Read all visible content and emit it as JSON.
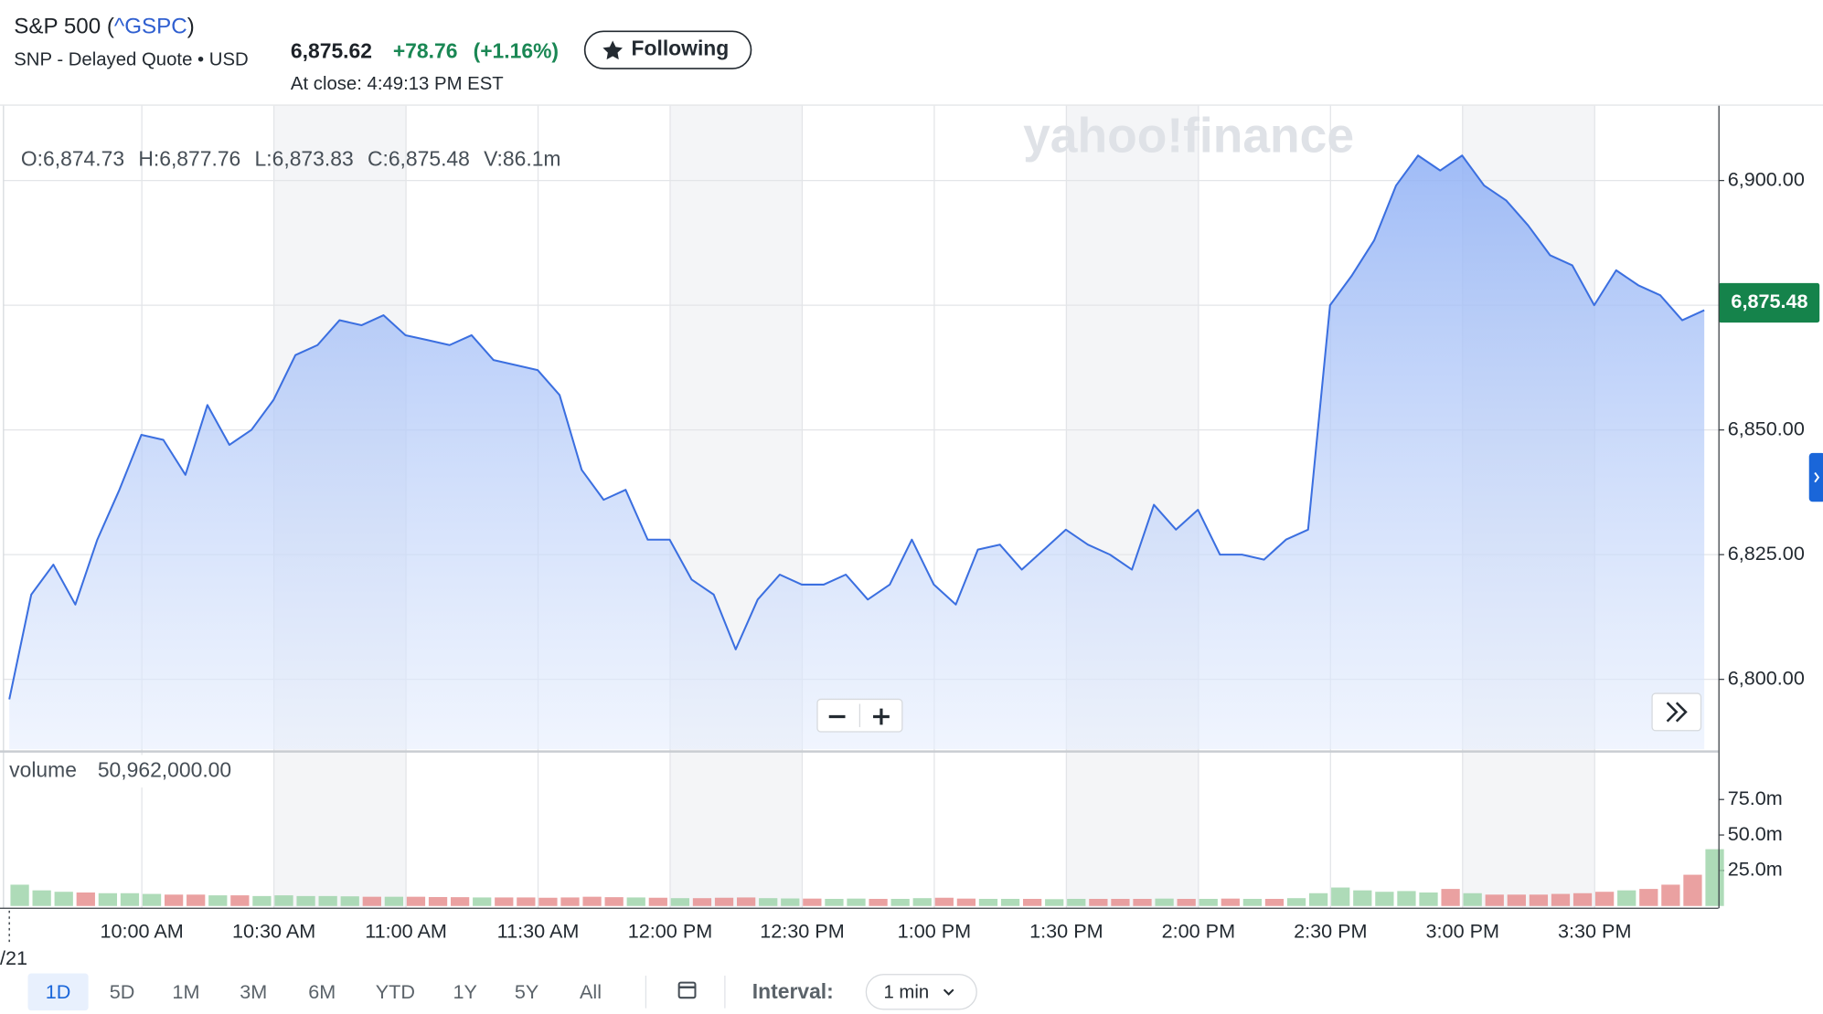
{
  "header": {
    "title": [
      "S&P 500 (",
      "^GSPC",
      ")"
    ],
    "exchange": "SNP - Delayed Quote • USD",
    "price": "6,875.62",
    "change": "+78.76",
    "change_percent": "(+1.16%)",
    "follow_button": "Following",
    "close_time": "At close: 4:49:13 PM EST"
  },
  "chart_data": {
    "type": "area",
    "watermark": "yahoo!finance",
    "ohlcv": [
      "O:6,874.73",
      "H:6,877.76",
      "L:6,873.83",
      "C:6,875.48",
      "V:86.1m"
    ],
    "last_price_label": {
      "value": 6875.48,
      "label": "6,875.48"
    },
    "x_ticks": [
      "10:00 AM",
      "10:30 AM",
      "11:00 AM",
      "11:30 AM",
      "12:00 PM",
      "12:30 PM",
      "1:00 PM",
      "1:30 PM",
      "2:00 PM",
      "2:30 PM",
      "3:00 PM",
      "3:30 PM"
    ],
    "date_label": "/21",
    "color": "#3b6fe0",
    "ylim": [
      6786,
      6915
    ],
    "yticks": [
      {
        "value": 6800,
        "label": "6,800.00"
      },
      {
        "value": 6825,
        "label": "6,825.00"
      },
      {
        "value": 6850,
        "label": "6,850.00"
      },
      {
        "value": 6875,
        "label": null
      },
      {
        "value": 6900,
        "label": "6,900.00"
      }
    ],
    "values": [
      6796,
      6817,
      6823,
      6815,
      6828,
      6838,
      6849,
      6848,
      6841,
      6855,
      6847,
      6850,
      6856,
      6865,
      6867,
      6872,
      6871,
      6873,
      6869,
      6868,
      6867,
      6869,
      6864,
      6863,
      6862,
      6857,
      6842,
      6836,
      6838,
      6828,
      6828,
      6820,
      6817,
      6806,
      6816,
      6821,
      6819,
      6819,
      6821,
      6816,
      6819,
      6828,
      6819,
      6815,
      6826,
      6827,
      6822,
      6826,
      6830,
      6827,
      6825,
      6822,
      6835,
      6830,
      6834,
      6825,
      6825,
      6824,
      6828,
      6830,
      6875,
      6881,
      6888,
      6899,
      6905,
      6902,
      6905,
      6899,
      6896,
      6891,
      6885,
      6883,
      6875,
      6882,
      6879,
      6877,
      6872,
      6874
    ],
    "volume": {
      "label": "volume",
      "total": "50,962,000.00",
      "ylim": [
        0,
        108000000
      ],
      "yticks": [
        {
          "value": 25000000,
          "label": "25.0m"
        },
        {
          "value": 50000000,
          "label": "50.0m"
        },
        {
          "value": 75000000,
          "label": "75.0m"
        }
      ],
      "values": [
        15000000,
        11000000,
        10000000,
        9500000,
        9000000,
        9000000,
        8500000,
        8000000,
        8000000,
        7500000,
        7500000,
        7000000,
        7500000,
        7000000,
        7000000,
        6800000,
        6500000,
        6500000,
        6500000,
        6300000,
        6200000,
        6000000,
        6000000,
        6000000,
        5800000,
        6000000,
        6500000,
        6200000,
        6000000,
        5800000,
        5500000,
        5500000,
        5800000,
        6000000,
        5500000,
        5300000,
        5200000,
        5000000,
        5200000,
        5000000,
        5000000,
        5500000,
        5800000,
        5200000,
        5000000,
        5000000,
        5000000,
        4800000,
        5000000,
        5000000,
        5000000,
        5000000,
        5200000,
        5000000,
        5000000,
        5200000,
        5000000,
        5000000,
        5500000,
        9000000,
        13000000,
        11000000,
        10000000,
        10500000,
        9500000,
        12000000,
        9000000,
        8000000,
        8000000,
        8000000,
        8500000,
        9000000,
        10000000,
        11000000,
        12000000,
        15000000,
        22000000,
        40000000
      ]
    }
  },
  "toolbar": {
    "ranges": [
      "1D",
      "5D",
      "1M",
      "3M",
      "6M",
      "YTD",
      "1Y",
      "5Y",
      "All"
    ],
    "selected_range": 0,
    "interval_label": "Interval:",
    "interval": "1 min"
  }
}
